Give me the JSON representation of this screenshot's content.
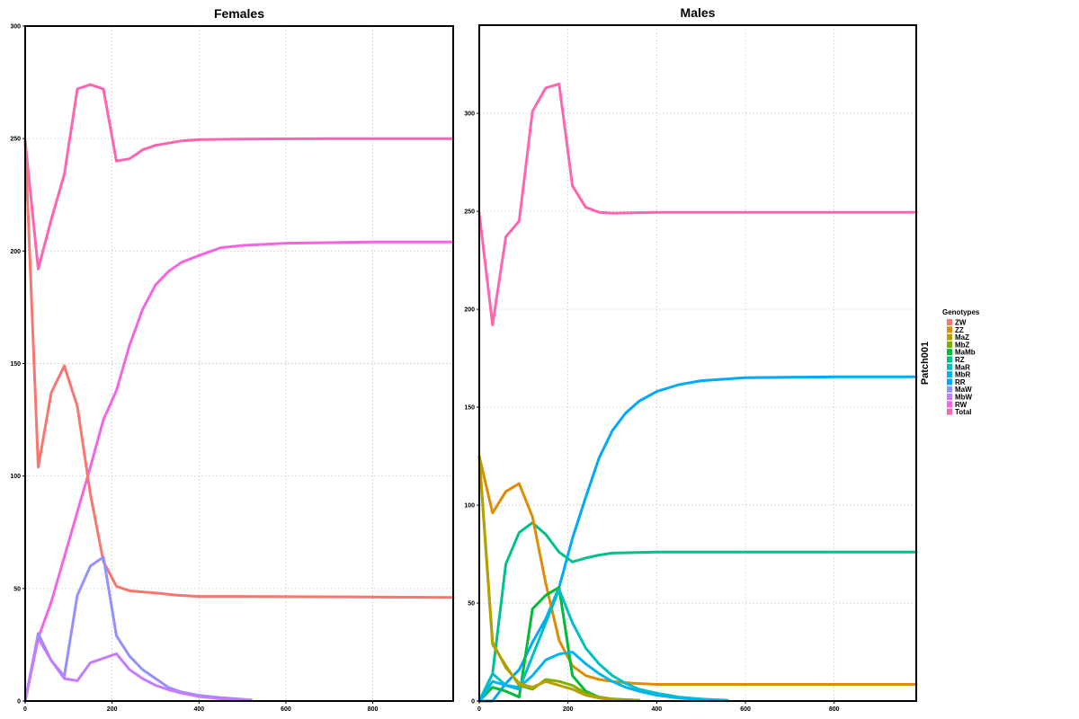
{
  "chart_data": {
    "type": "line",
    "strip_label": "Patch001",
    "legend": {
      "title": "Genotypes",
      "placement": "right",
      "entries": [
        "ZW",
        "ZZ",
        "MaZ",
        "MbZ",
        "MaMb",
        "RZ",
        "MaR",
        "MbR",
        "RR",
        "MaW",
        "MbW",
        "RW",
        "Total"
      ]
    },
    "colors": {
      "ZW": "#F8766D",
      "ZZ": "#DE8C00",
      "MaZ": "#B79F00",
      "MbZ": "#7CAE00",
      "MaMb": "#00BA38",
      "RZ": "#00C08B",
      "MaR": "#00BFC4",
      "MbR": "#00B4F0",
      "RR": "#00A9FF",
      "MaW": "#9590FF",
      "MbW": "#C77CFF",
      "RW": "#F564E3",
      "Total": "#FF64B0"
    },
    "panels": [
      {
        "title": "Females",
        "xlim": [
          0,
          985
        ],
        "ylim": [
          0,
          300
        ],
        "x_ticks": [
          0,
          200,
          400,
          600,
          800
        ],
        "y_ticks": [
          0,
          50,
          100,
          150,
          200,
          250,
          300
        ],
        "grid": true,
        "series": [
          {
            "name": "Total",
            "points": [
              [
                0,
                249
              ],
              [
                30,
                192
              ],
              [
                60,
                214
              ],
              [
                90,
                234
              ],
              [
                120,
                272
              ],
              [
                150,
                274
              ],
              [
                180,
                272
              ],
              [
                210,
                240
              ],
              [
                240,
                241
              ],
              [
                270,
                245
              ],
              [
                300,
                247
              ],
              [
                330,
                248
              ],
              [
                360,
                249
              ],
              [
                400,
                249.5
              ],
              [
                500,
                249.8
              ],
              [
                700,
                250
              ],
              [
                985,
                250
              ]
            ]
          },
          {
            "name": "RW",
            "points": [
              [
                0,
                0
              ],
              [
                30,
                28
              ],
              [
                60,
                44
              ],
              [
                90,
                64
              ],
              [
                120,
                84
              ],
              [
                150,
                104
              ],
              [
                180,
                125
              ],
              [
                210,
                138
              ],
              [
                240,
                158
              ],
              [
                270,
                174
              ],
              [
                300,
                185
              ],
              [
                330,
                191
              ],
              [
                360,
                195
              ],
              [
                400,
                198
              ],
              [
                450,
                201.5
              ],
              [
                500,
                202.5
              ],
              [
                600,
                203.5
              ],
              [
                800,
                204
              ],
              [
                985,
                204
              ]
            ]
          },
          {
            "name": "ZW",
            "points": [
              [
                0,
                249
              ],
              [
                30,
                104
              ],
              [
                60,
                137
              ],
              [
                90,
                149
              ],
              [
                120,
                131
              ],
              [
                150,
                92
              ],
              [
                180,
                62
              ],
              [
                210,
                51
              ],
              [
                240,
                49
              ],
              [
                270,
                48.5
              ],
              [
                300,
                48
              ],
              [
                350,
                47
              ],
              [
                400,
                46.5
              ],
              [
                500,
                46.5
              ],
              [
                985,
                46
              ]
            ]
          },
          {
            "name": "MaW",
            "points": [
              [
                0,
                0
              ],
              [
                30,
                30
              ],
              [
                60,
                18
              ],
              [
                90,
                11
              ],
              [
                120,
                47
              ],
              [
                150,
                60
              ],
              [
                180,
                64
              ],
              [
                210,
                29
              ],
              [
                240,
                20
              ],
              [
                270,
                14
              ],
              [
                300,
                10
              ],
              [
                330,
                6
              ],
              [
                360,
                4
              ],
              [
                400,
                2.5
              ],
              [
                450,
                1.5
              ],
              [
                520,
                0.5
              ]
            ]
          },
          {
            "name": "MbW",
            "points": [
              [
                0,
                0
              ],
              [
                30,
                28
              ],
              [
                60,
                18
              ],
              [
                90,
                10
              ],
              [
                120,
                9
              ],
              [
                150,
                17
              ],
              [
                180,
                19
              ],
              [
                210,
                21
              ],
              [
                240,
                14
              ],
              [
                270,
                10
              ],
              [
                300,
                7
              ],
              [
                330,
                5
              ],
              [
                360,
                3.5
              ],
              [
                400,
                2
              ],
              [
                450,
                1
              ],
              [
                520,
                0.3
              ]
            ]
          }
        ]
      },
      {
        "title": "Males",
        "xlim": [
          0,
          985
        ],
        "ylim": [
          0,
          345
        ],
        "x_ticks": [
          0,
          200,
          400,
          600,
          800
        ],
        "y_ticks": [
          0,
          50,
          100,
          150,
          200,
          250,
          300
        ],
        "grid": true,
        "series": [
          {
            "name": "Total",
            "points": [
              [
                0,
                249
              ],
              [
                30,
                192
              ],
              [
                60,
                237
              ],
              [
                90,
                245
              ],
              [
                120,
                301
              ],
              [
                150,
                313
              ],
              [
                180,
                315
              ],
              [
                210,
                263
              ],
              [
                240,
                252
              ],
              [
                270,
                249.5
              ],
              [
                300,
                249
              ],
              [
                400,
                249.5
              ],
              [
                600,
                249.5
              ],
              [
                985,
                249.5
              ]
            ]
          },
          {
            "name": "RR",
            "points": [
              [
                0,
                0
              ],
              [
                30,
                0
              ],
              [
                60,
                9
              ],
              [
                90,
                16
              ],
              [
                120,
                30
              ],
              [
                150,
                42
              ],
              [
                180,
                58
              ],
              [
                210,
                83
              ],
              [
                240,
                104
              ],
              [
                270,
                124
              ],
              [
                300,
                138
              ],
              [
                330,
                147
              ],
              [
                360,
                153
              ],
              [
                400,
                158
              ],
              [
                450,
                161.5
              ],
              [
                500,
                163.5
              ],
              [
                600,
                165
              ],
              [
                800,
                165.5
              ],
              [
                985,
                165.5
              ]
            ]
          },
          {
            "name": "RZ",
            "points": [
              [
                0,
                0
              ],
              [
                30,
                14
              ],
              [
                60,
                70
              ],
              [
                90,
                86
              ],
              [
                120,
                91
              ],
              [
                150,
                85
              ],
              [
                180,
                76
              ],
              [
                210,
                71
              ],
              [
                240,
                73
              ],
              [
                270,
                74.5
              ],
              [
                300,
                75.5
              ],
              [
                400,
                76
              ],
              [
                600,
                76
              ],
              [
                985,
                76
              ]
            ]
          },
          {
            "name": "ZZ",
            "points": [
              [
                0,
                125
              ],
              [
                30,
                96
              ],
              [
                60,
                107
              ],
              [
                90,
                111
              ],
              [
                120,
                94
              ],
              [
                150,
                60
              ],
              [
                180,
                31
              ],
              [
                210,
                18
              ],
              [
                240,
                13
              ],
              [
                270,
                11
              ],
              [
                300,
                10
              ],
              [
                350,
                9
              ],
              [
                400,
                8.5
              ],
              [
                500,
                8.5
              ],
              [
                985,
                8.5
              ]
            ]
          },
          {
            "name": "MaMb",
            "points": [
              [
                0,
                0
              ],
              [
                30,
                7
              ],
              [
                60,
                5
              ],
              [
                90,
                2
              ],
              [
                120,
                47
              ],
              [
                150,
                54
              ],
              [
                180,
                58
              ],
              [
                210,
                13
              ],
              [
                240,
                5
              ],
              [
                270,
                2
              ],
              [
                300,
                1
              ],
              [
                360,
                0.3
              ]
            ]
          },
          {
            "name": "MaR",
            "points": [
              [
                0,
                0
              ],
              [
                30,
                14
              ],
              [
                60,
                8
              ],
              [
                90,
                6
              ],
              [
                120,
                23
              ],
              [
                150,
                40
              ],
              [
                180,
                57
              ],
              [
                210,
                40
              ],
              [
                240,
                27
              ],
              [
                270,
                19
              ],
              [
                300,
                13
              ],
              [
                330,
                9
              ],
              [
                360,
                6
              ],
              [
                400,
                4
              ],
              [
                450,
                2
              ],
              [
                500,
                1
              ],
              [
                560,
                0.3
              ]
            ]
          },
          {
            "name": "MbR",
            "points": [
              [
                0,
                0
              ],
              [
                30,
                10
              ],
              [
                60,
                8
              ],
              [
                90,
                7
              ],
              [
                120,
                13
              ],
              [
                150,
                21
              ],
              [
                180,
                24
              ],
              [
                210,
                25
              ],
              [
                240,
                19
              ],
              [
                270,
                14
              ],
              [
                300,
                10
              ],
              [
                330,
                7
              ],
              [
                360,
                5
              ],
              [
                400,
                3
              ],
              [
                450,
                1.5
              ],
              [
                500,
                0.7
              ],
              [
                560,
                0.2
              ]
            ]
          },
          {
            "name": "MbZ",
            "points": [
              [
                0,
                125
              ],
              [
                30,
                29
              ],
              [
                60,
                18
              ],
              [
                90,
                8
              ],
              [
                120,
                6
              ],
              [
                150,
                11
              ],
              [
                180,
                10
              ],
              [
                210,
                8
              ],
              [
                240,
                4
              ],
              [
                270,
                2
              ],
              [
                300,
                1
              ],
              [
                360,
                0.3
              ]
            ]
          },
          {
            "name": "MaZ",
            "points": [
              [
                0,
                125
              ],
              [
                30,
                30
              ],
              [
                60,
                17
              ],
              [
                90,
                9
              ],
              [
                120,
                7
              ],
              [
                150,
                10
              ],
              [
                180,
                8
              ],
              [
                210,
                6
              ],
              [
                240,
                3
              ],
              [
                270,
                1.5
              ],
              [
                300,
                0.7
              ],
              [
                360,
                0.2
              ]
            ]
          }
        ]
      }
    ]
  }
}
